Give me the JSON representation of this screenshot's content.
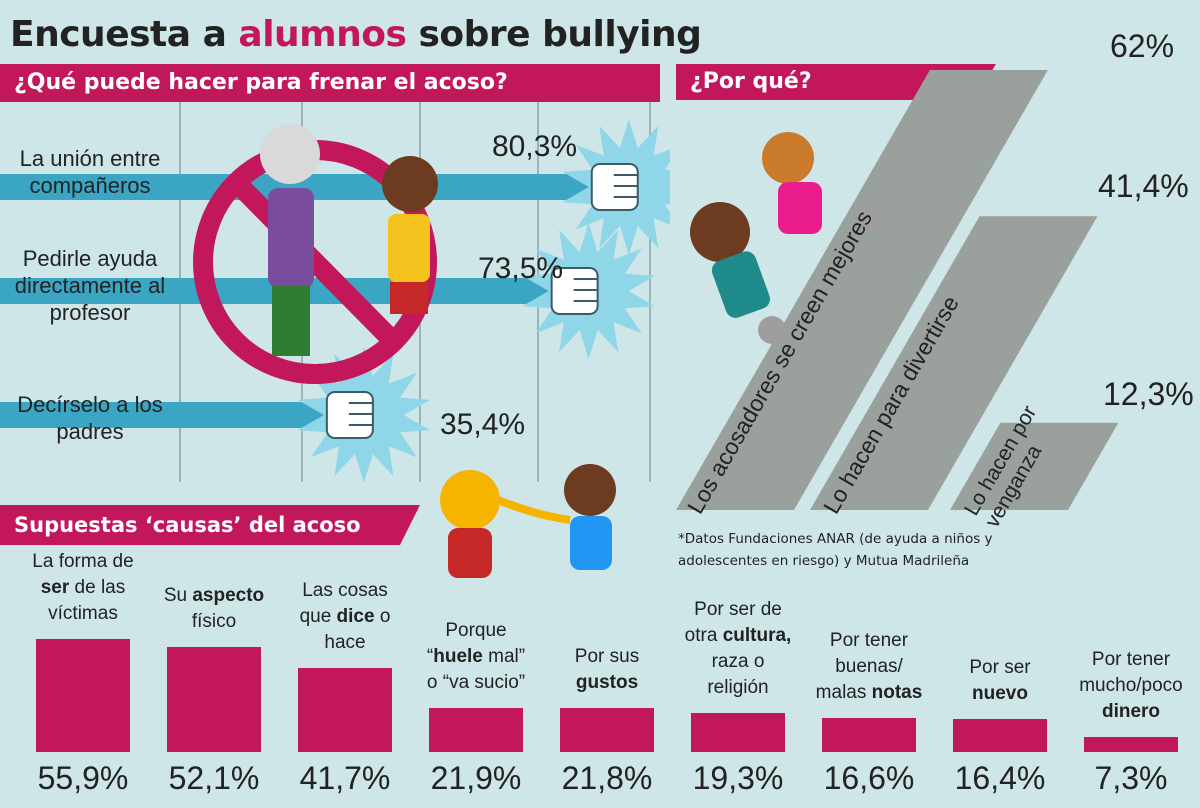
{
  "title": {
    "before": "Encuesta a ",
    "accent": "alumnos",
    "after": " sobre bullying"
  },
  "colors": {
    "accent": "#c2185b",
    "background": "#cfe6e8",
    "row_band": "#3aa6c4",
    "why_bars": "#9aa19c"
  },
  "freno": {
    "heading": "¿Qué puede hacer para frenar el acoso?",
    "rows": [
      {
        "label_lines": [
          "La unión entre",
          "compañeros"
        ],
        "value": 80.3,
        "value_text": "80,3%"
      },
      {
        "label_lines": [
          "Pedirle ayuda",
          "directamente al",
          "profesor"
        ],
        "value": 73.5,
        "value_text": "73,5%"
      },
      {
        "label_lines": [
          "Decírselo a los",
          "padres"
        ],
        "value": 35.4,
        "value_text": "35,4%"
      }
    ]
  },
  "porque": {
    "heading": "¿Por qué?",
    "items": [
      {
        "label_lines": [
          "Los acosadores se creen mejores"
        ],
        "value": 62,
        "value_text": "62%"
      },
      {
        "label_lines": [
          "Lo hacen para divertirse"
        ],
        "value": 41.4,
        "value_text": "41,4%"
      },
      {
        "label_lines": [
          "Lo hacen por",
          "venganza"
        ],
        "value": 12.3,
        "value_text": "12,3%"
      }
    ]
  },
  "causas": {
    "heading": "Supuestas ‘causas’ del acoso",
    "items": [
      {
        "parts": [
          [
            "La forma de",
            ""
          ],
          [
            "",
            "ser"
          ],
          [
            " de las",
            ""
          ],
          [
            "víctimas",
            ""
          ]
        ],
        "value": 55.9,
        "value_text": "55,9%"
      },
      {
        "parts": [
          [
            "Su ",
            ""
          ],
          [
            "",
            "aspecto"
          ],
          [
            "físico",
            ""
          ]
        ],
        "value": 52.1,
        "value_text": "52,1%"
      },
      {
        "parts": [
          [
            "Las cosas",
            ""
          ],
          [
            "que ",
            ""
          ],
          [
            "",
            "dice"
          ],
          [
            " o",
            ""
          ],
          [
            "hace",
            ""
          ]
        ],
        "value": 41.7,
        "value_text": "41,7%"
      },
      {
        "parts": [
          [
            "Porque",
            ""
          ],
          [
            "“",
            ""
          ],
          [
            "",
            "huele"
          ],
          [
            " mal”",
            ""
          ],
          [
            "o “va sucio”",
            ""
          ]
        ],
        "value": 21.9,
        "value_text": "21,9%"
      },
      {
        "parts": [
          [
            "Por sus",
            ""
          ],
          [
            "",
            "gustos"
          ]
        ],
        "value": 21.8,
        "value_text": "21,8%"
      },
      {
        "parts": [
          [
            "Por ser de",
            ""
          ],
          [
            "otra ",
            ""
          ],
          [
            "",
            "cultura,"
          ],
          [
            "raza o",
            ""
          ],
          [
            "religión",
            ""
          ]
        ],
        "value": 19.3,
        "value_text": "19,3%"
      },
      {
        "parts": [
          [
            "Por tener",
            ""
          ],
          [
            "buenas/",
            ""
          ],
          [
            "malas ",
            ""
          ],
          [
            "",
            "notas"
          ]
        ],
        "value": 16.6,
        "value_text": "16,6%"
      },
      {
        "parts": [
          [
            "Por ser",
            ""
          ],
          [
            "",
            "nuevo"
          ]
        ],
        "value": 16.4,
        "value_text": "16,4%"
      },
      {
        "parts": [
          [
            "Por tener",
            ""
          ],
          [
            "mucho/poco",
            ""
          ],
          [
            "",
            "dinero"
          ]
        ],
        "value": 7.3,
        "value_text": "7,3%"
      }
    ]
  },
  "footnote": "*Datos Fundaciones ANAR (de ayuda a niños y adolescentes en riesgo) y Mutua Madrileña",
  "chart_data": [
    {
      "type": "bar",
      "title": "¿Qué puede hacer para frenar el acoso?",
      "categories": [
        "La unión entre compañeros",
        "Pedirle ayuda directamente al profesor",
        "Decírselo a los padres"
      ],
      "values": [
        80.3,
        73.5,
        35.4
      ],
      "ylabel": "",
      "xlabel": ""
    },
    {
      "type": "bar",
      "title": "¿Por qué?",
      "categories": [
        "Los acosadores se creen mejores",
        "Lo hacen para divertirse",
        "Lo hacen por venganza"
      ],
      "values": [
        62,
        41.4,
        12.3
      ],
      "ylabel": "",
      "xlabel": ""
    },
    {
      "type": "bar",
      "title": "Supuestas ‘causas’ del acoso",
      "categories": [
        "La forma de ser de las víctimas",
        "Su aspecto físico",
        "Las cosas que dice o hace",
        "Porque “huele mal” o “va sucio”",
        "Por sus gustos",
        "Por ser de otra cultura, raza o religión",
        "Por tener buenas/malas notas",
        "Por ser nuevo",
        "Por tener mucho/poco dinero"
      ],
      "values": [
        55.9,
        52.1,
        41.7,
        21.9,
        21.8,
        19.3,
        16.6,
        16.4,
        7.3
      ],
      "ylabel": "",
      "xlabel": ""
    }
  ]
}
